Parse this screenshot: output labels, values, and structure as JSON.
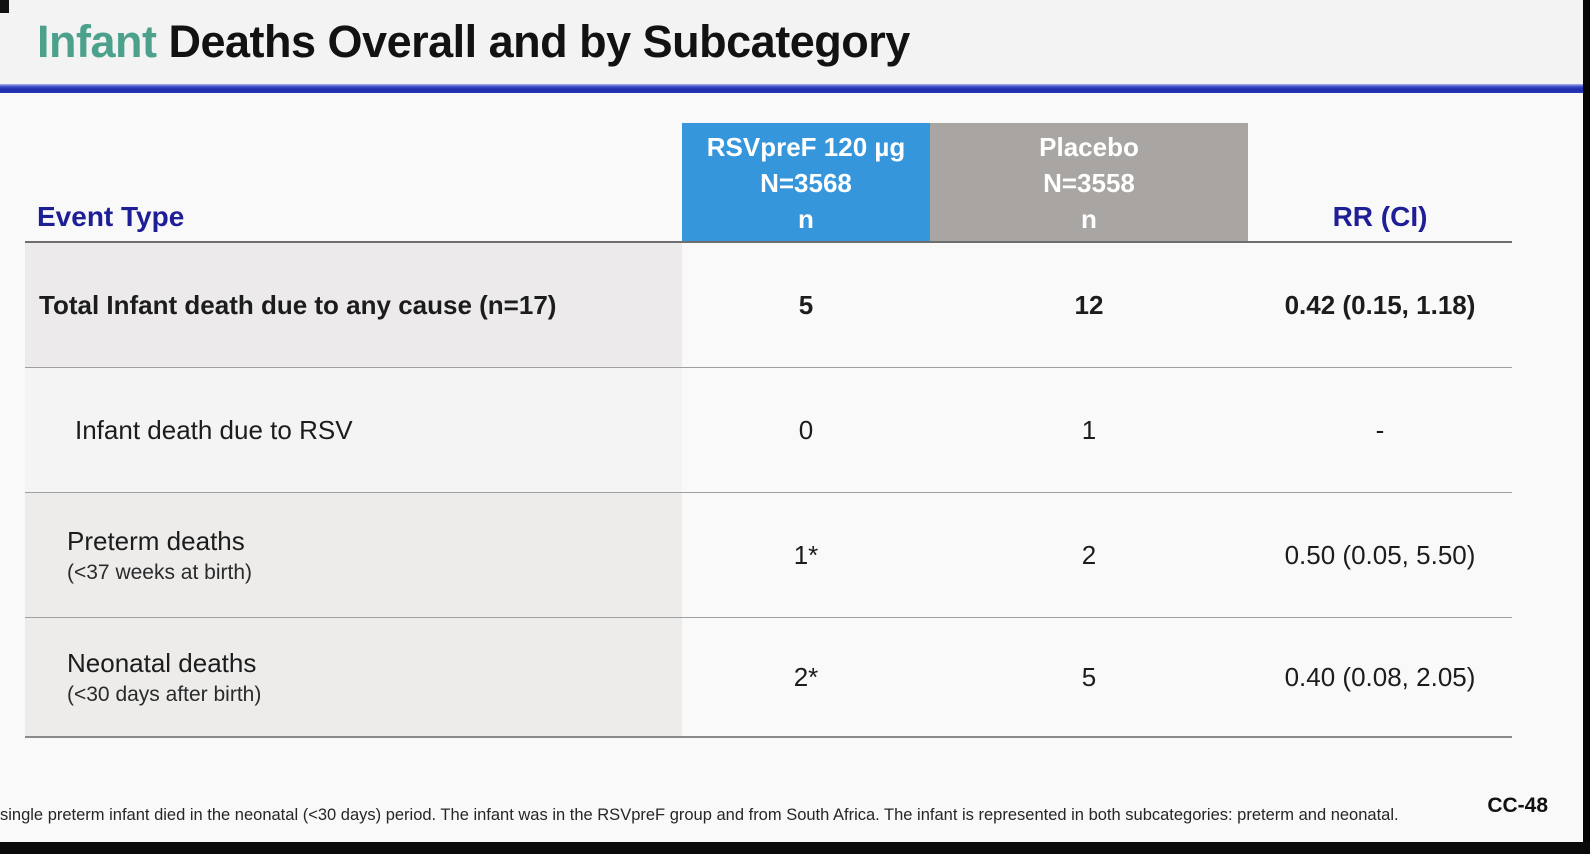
{
  "slide": {
    "title_highlight": "Infant",
    "title_rest": " Deaths Overall and by Subcategory",
    "footnote": "single preterm infant died in the neonatal (<30 days) period. The infant was in the RSVpreF group and from South Africa. The infant is represented in both subcategories: preterm and neonatal.",
    "page_number": "CC-48"
  },
  "colors": {
    "title_highlight": "#4ba18c",
    "title_rule_blue": "#1e2eae",
    "vaccine_header_bg": "#3596db",
    "placebo_header_bg": "#a8a5a3",
    "column_header_text": "#1e1e96",
    "row_shading": "#eceaea"
  },
  "table": {
    "event_type_header": "Event Type",
    "rr_header": "RR (CI)",
    "group_headers": [
      {
        "line1": "RSVpreF 120 µg",
        "line2": "N=3568",
        "line3": "n"
      },
      {
        "line1": "Placebo",
        "line2": "N=3558",
        "line3": "n"
      }
    ],
    "rows": [
      {
        "label": "Total Infant death due to any cause (n=17)",
        "sub": "",
        "rsvpref_n": "5",
        "placebo_n": "12",
        "rr_ci": "0.42 (0.15, 1.18)"
      },
      {
        "label": "Infant death due to RSV",
        "sub": "",
        "rsvpref_n": "0",
        "placebo_n": "1",
        "rr_ci": "-"
      },
      {
        "label": "Preterm deaths",
        "sub": "(<37 weeks at birth)",
        "rsvpref_n": "1*",
        "placebo_n": "2",
        "rr_ci": "0.50 (0.05, 5.50)"
      },
      {
        "label": "Neonatal deaths",
        "sub": "(<30 days after birth)",
        "rsvpref_n": "2*",
        "placebo_n": "5",
        "rr_ci": "0.40 (0.08, 2.05)"
      }
    ]
  }
}
